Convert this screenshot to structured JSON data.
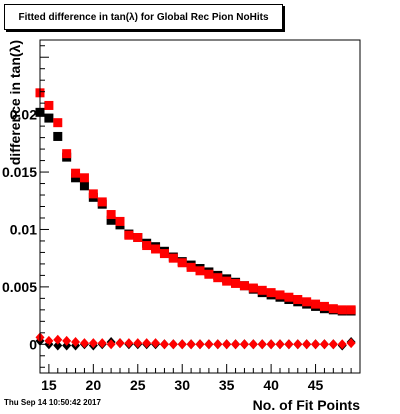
{
  "title": "Fitted difference in tan(λ) for Global Rec Pion NoHits",
  "timestamp": "Thu Sep 14 10:50:42 2017",
  "colors": {
    "series1": "#000000",
    "series2": "#ff0000",
    "frame": "#000000"
  },
  "chart_data": {
    "type": "scatter",
    "xlabel": "No. of Fit Points",
    "ylabel": "difference in tan(λ)",
    "xlim": [
      14,
      50
    ],
    "ylim": [
      -0.0025,
      0.0265
    ],
    "grid": false,
    "legend": "none",
    "x_ticks": [
      15,
      20,
      25,
      30,
      35,
      40,
      45
    ],
    "x_tick_labels": [
      "15",
      "20",
      "25",
      "30",
      "35",
      "40",
      "45"
    ],
    "y_ticks": [
      0,
      0.005,
      0.01,
      0.015,
      0.02
    ],
    "y_tick_labels": [
      "0",
      "0.005",
      "0.01",
      "0.015",
      "0.02"
    ],
    "x": [
      14,
      15,
      16,
      17,
      18,
      19,
      20,
      21,
      22,
      23,
      24,
      25,
      26,
      27,
      28,
      29,
      30,
      31,
      32,
      33,
      34,
      35,
      36,
      37,
      38,
      39,
      40,
      41,
      42,
      43,
      44,
      45,
      46,
      47,
      48,
      49
    ],
    "series": [
      {
        "marker": "square",
        "color": "#000000",
        "values": [
          0.0202,
          0.0197,
          0.0181,
          0.0163,
          0.0145,
          0.0138,
          0.0128,
          0.0122,
          0.0108,
          0.0104,
          0.0096,
          0.0093,
          0.0088,
          0.0085,
          0.0081,
          0.0076,
          0.0072,
          0.0069,
          0.0066,
          0.0063,
          0.006,
          0.0057,
          0.0054,
          0.0051,
          0.0048,
          0.0045,
          0.0043,
          0.0041,
          0.0039,
          0.0037,
          0.0035,
          0.0033,
          0.0031,
          0.003,
          0.0029,
          0.0029
        ]
      },
      {
        "marker": "square",
        "color": "#ff0000",
        "values": [
          0.0219,
          0.0208,
          0.0193,
          0.0166,
          0.0149,
          0.0145,
          0.0131,
          0.0124,
          0.0113,
          0.0107,
          0.0095,
          0.0093,
          0.0086,
          0.0083,
          0.0079,
          0.0075,
          0.0071,
          0.0067,
          0.0064,
          0.0061,
          0.0058,
          0.0055,
          0.0053,
          0.0051,
          0.0049,
          0.0047,
          0.0045,
          0.0043,
          0.0041,
          0.0039,
          0.0037,
          0.0035,
          0.0033,
          0.0031,
          0.003,
          0.003
        ]
      },
      {
        "marker": "diamond",
        "color": "#000000",
        "values": [
          0.0003,
          0.0,
          -0.0001,
          -0.0001,
          -0.0001,
          0.0,
          -0.0001,
          0.0,
          0.0002,
          0.0001,
          0.0,
          0.0,
          0.0,
          0.0,
          0.0,
          0.0,
          0.0,
          0.0,
          0.0,
          0.0,
          0.0,
          0.0,
          0.0,
          0.0,
          0.0,
          0.0,
          0.0,
          0.0,
          0.0,
          0.0,
          0.0,
          0.0,
          0.0,
          0.0,
          -0.0001,
          0.0002
        ]
      },
      {
        "marker": "diamond",
        "color": "#ff0000",
        "values": [
          0.0006,
          0.0003,
          0.0004,
          0.0003,
          0.0002,
          0.0001,
          0.0001,
          0.0001,
          0.0,
          0.0001,
          0.0001,
          0.0001,
          0.0001,
          0.0001,
          0.0,
          0.0,
          0.0,
          0.0,
          0.0,
          0.0,
          0.0,
          0.0,
          0.0,
          0.0,
          0.0,
          0.0,
          0.0,
          0.0,
          0.0,
          0.0,
          0.0,
          0.0,
          0.0,
          0.0,
          0.0,
          0.0001
        ]
      }
    ]
  }
}
